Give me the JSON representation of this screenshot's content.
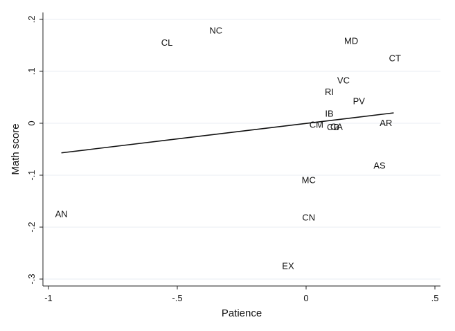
{
  "chart_data": {
    "type": "scatter",
    "title": "",
    "xlabel": "Patience",
    "ylabel": "Math score",
    "xlim": [
      -1,
      0.5
    ],
    "ylim": [
      -0.3,
      0.2
    ],
    "x_ticks": [
      -1,
      -0.5,
      0,
      0.5
    ],
    "x_tick_labels": [
      "-1",
      "-.5",
      "0",
      ".5"
    ],
    "y_ticks": [
      -0.3,
      -0.2,
      -0.1,
      0,
      0.1,
      0.2
    ],
    "y_tick_labels": [
      "-.3",
      "-.2",
      "-.1",
      "0",
      ".1",
      ".2"
    ],
    "grid": "horizontal",
    "points": [
      {
        "label": "AN",
        "x": -0.95,
        "y": -0.175
      },
      {
        "label": "CL",
        "x": -0.54,
        "y": 0.155
      },
      {
        "label": "NC",
        "x": -0.35,
        "y": 0.178
      },
      {
        "label": "EX",
        "x": -0.07,
        "y": -0.275
      },
      {
        "label": "CN",
        "x": 0.01,
        "y": -0.182
      },
      {
        "label": "MC",
        "x": 0.01,
        "y": -0.11
      },
      {
        "label": "CM",
        "x": 0.04,
        "y": -0.003
      },
      {
        "label": "CB",
        "x": 0.105,
        "y": -0.008
      },
      {
        "label": "CA",
        "x": 0.118,
        "y": -0.007
      },
      {
        "label": "IB",
        "x": 0.09,
        "y": 0.018
      },
      {
        "label": "RI",
        "x": 0.09,
        "y": 0.06
      },
      {
        "label": "VC",
        "x": 0.145,
        "y": 0.082
      },
      {
        "label": "PV",
        "x": 0.205,
        "y": 0.042
      },
      {
        "label": "MD",
        "x": 0.175,
        "y": 0.158
      },
      {
        "label": "CT",
        "x": 0.345,
        "y": 0.125
      },
      {
        "label": "AR",
        "x": 0.31,
        "y": 0.0
      },
      {
        "label": "AS",
        "x": 0.285,
        "y": -0.082
      }
    ],
    "fit_line": {
      "x": [
        -0.95,
        0.34
      ],
      "y": [
        -0.057,
        0.02
      ]
    }
  }
}
